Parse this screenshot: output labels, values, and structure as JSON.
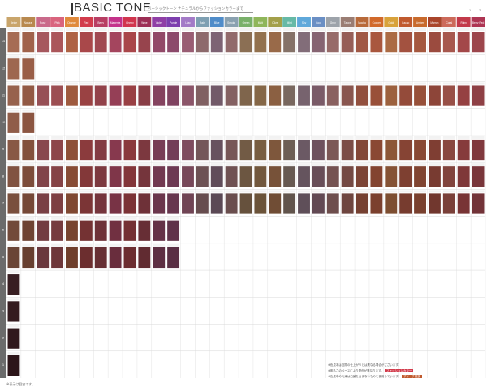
{
  "header": {
    "title": "BASIC TONE",
    "subtitle": "ベーシックトーン  ナチュラルからファッションカラーまで",
    "page_marks": [
      "1",
      "2"
    ]
  },
  "levels": [
    "13",
    "12",
    "11",
    "10",
    "9",
    "8",
    "7",
    "6",
    "5",
    "4",
    "3",
    "2",
    "1"
  ],
  "row_label_color": "#6b6b6b",
  "columns": [
    {
      "label": "Beige",
      "color": "#c9a56b",
      "family": "natural"
    },
    {
      "label": "Natural",
      "color": "#b8894f",
      "family": "natural"
    },
    {
      "label": "Rose",
      "color": "#c96a8a",
      "family": "warm"
    },
    {
      "label": "Pink",
      "color": "#d9647d",
      "family": "warm"
    },
    {
      "label": "Orange",
      "color": "#e08a3c",
      "family": "warm"
    },
    {
      "label": "Red",
      "color": "#d23c4c",
      "family": "warm"
    },
    {
      "label": "Berry",
      "color": "#b83e63",
      "family": "warm"
    },
    {
      "label": "Magenta",
      "color": "#c4338a",
      "family": "warm"
    },
    {
      "label": "Cherry",
      "color": "#d1354e",
      "family": "warm"
    },
    {
      "label": "Wine",
      "color": "#9c2e55",
      "family": "warm"
    },
    {
      "label": "Violet",
      "color": "#8f3fa6",
      "family": "cool"
    },
    {
      "label": "Purple",
      "color": "#7d3fae",
      "family": "cool"
    },
    {
      "label": "Lilac",
      "color": "#a37ac7",
      "family": "cool"
    },
    {
      "label": "Ash",
      "color": "#7e9fb2",
      "family": "cool"
    },
    {
      "label": "Blue",
      "color": "#4f8cc9",
      "family": "cool"
    },
    {
      "label": "Smoke",
      "color": "#8aa1b0",
      "family": "cool"
    },
    {
      "label": "Green",
      "color": "#79b06a",
      "family": "cool"
    },
    {
      "label": "Matt",
      "color": "#8fb65a",
      "family": "cool"
    },
    {
      "label": "Olive",
      "color": "#a3a04a",
      "family": "cool"
    },
    {
      "label": "Mint",
      "color": "#66b9a6",
      "family": "cool"
    },
    {
      "label": "Sky",
      "color": "#5fa8da",
      "family": "cool"
    },
    {
      "label": "Cool",
      "color": "#6a8fc4",
      "family": "cool"
    },
    {
      "label": "Grey",
      "color": "#9da3aa",
      "family": "cool"
    },
    {
      "label": "Taupe",
      "color": "#9a7d73",
      "family": "mix"
    },
    {
      "label": "Mocha",
      "color": "#b86a3a",
      "family": "mix"
    },
    {
      "label": "Copper",
      "color": "#d1692a",
      "family": "mix"
    },
    {
      "label": "Gold",
      "color": "#d8a23a",
      "family": "mix"
    },
    {
      "label": "Cacao",
      "color": "#c05a2e",
      "family": "mix"
    },
    {
      "label": "Amber",
      "color": "#c86a2c",
      "family": "mix"
    },
    {
      "label": "Marron",
      "color": "#a9452b",
      "family": "mix"
    },
    {
      "label": "Coral",
      "color": "#cc6a5a",
      "family": "mix"
    },
    {
      "label": "Ruby",
      "color": "#c23a4a",
      "family": "mix"
    },
    {
      "label": "Berry Red",
      "color": "#ad3553",
      "family": "mix"
    }
  ],
  "swatch_map": {
    "13": "full",
    "12": "first2",
    "11": "full",
    "10": "first2",
    "9": "full",
    "8": "full",
    "7": "full",
    "6": "first12",
    "5": "first12",
    "4": "first1",
    "3": "first1",
    "2": "first1",
    "1": "first1"
  },
  "footnote_left": "※表示は目安です。",
  "footnotes_right": [
    "※色見本は実際の仕上がりとは異なる場合がございます。",
    "※明るさのベースにより発色が異なります。",
    "※色見本の毛束は白髪を含まないものを使用しています。"
  ],
  "footnote_tags": [
    {
      "text": "ファッションカラー",
      "color": "#d23c4c"
    },
    {
      "text": "ブリーチ推奨",
      "color": "#c05a2e"
    }
  ]
}
